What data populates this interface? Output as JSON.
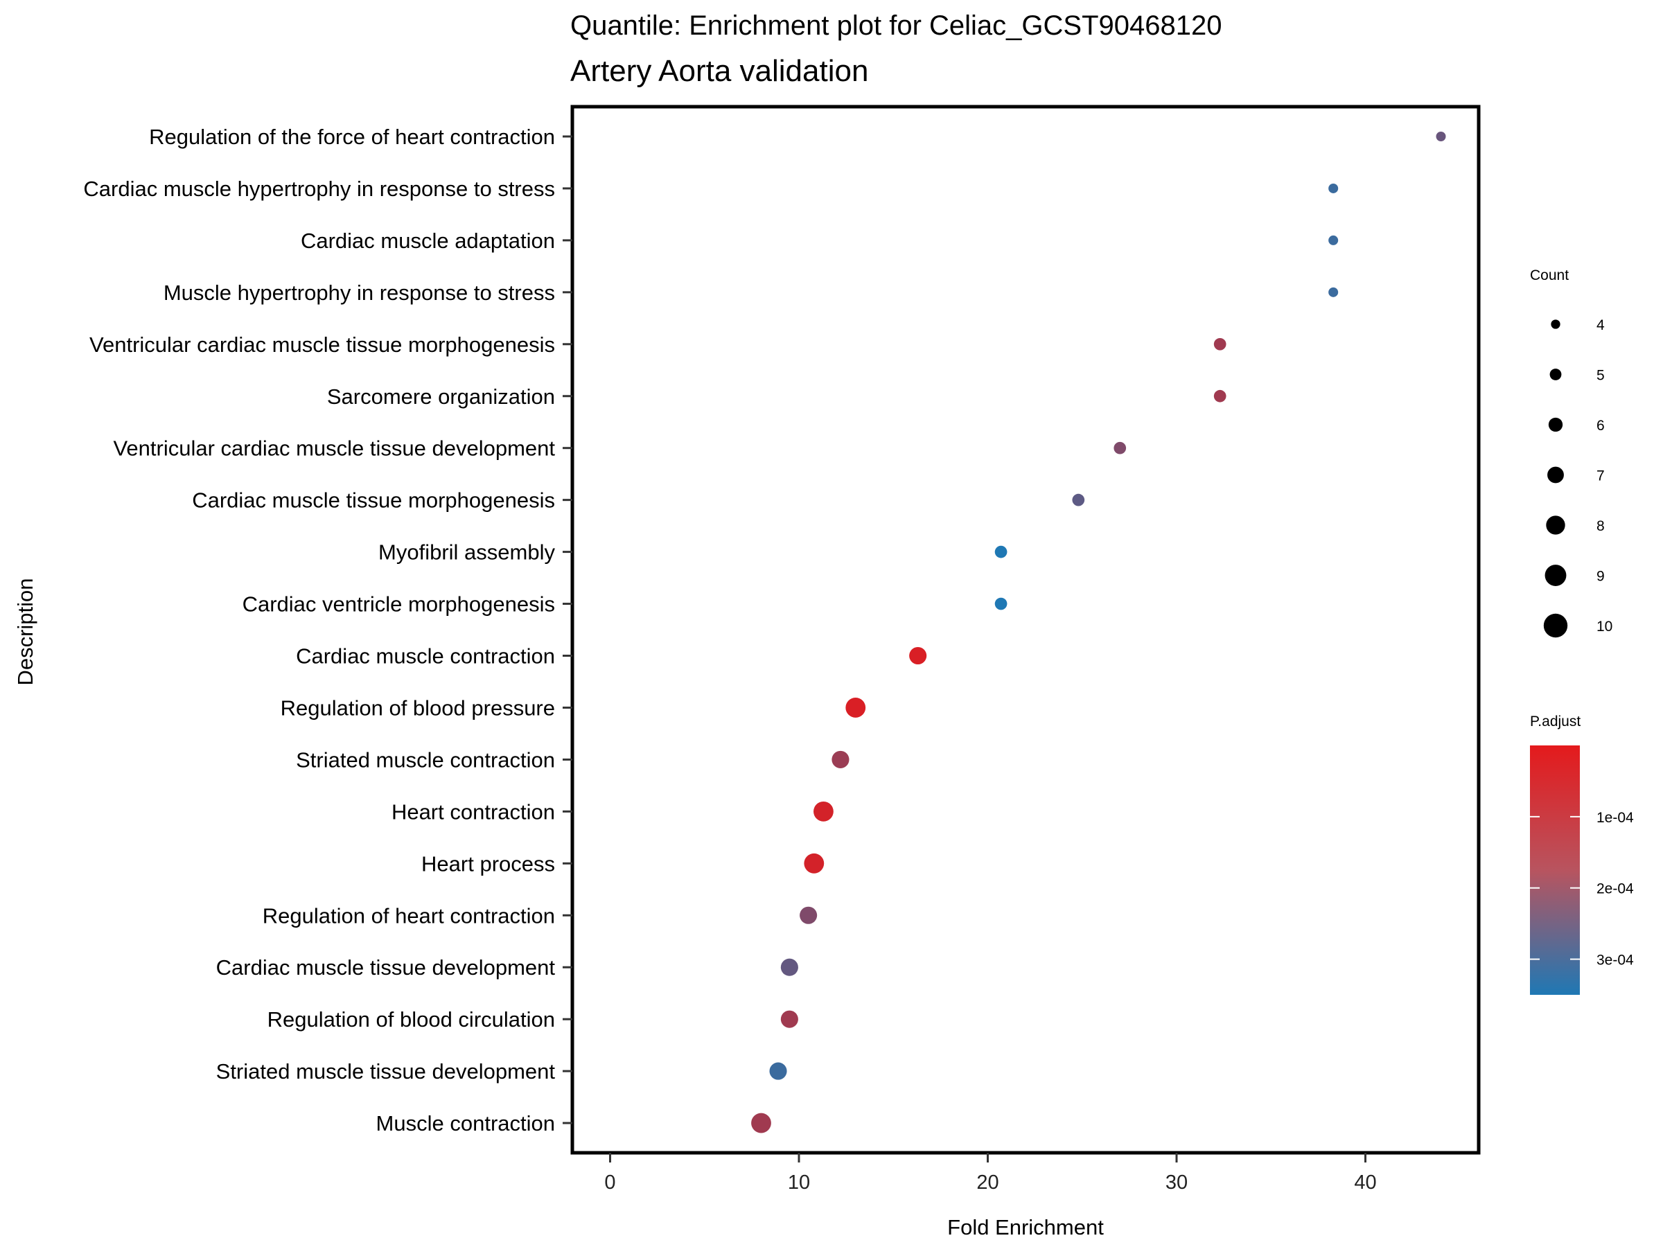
{
  "chart_data": {
    "type": "scatter",
    "title": "Quantile: Enrichment plot for Celiac_GCST90468120",
    "subtitle": "Artery Aorta validation",
    "xlabel": "Fold Enrichment",
    "ylabel": "Description",
    "xlim": [
      -2,
      46
    ],
    "xticks": [
      0,
      10,
      20,
      30,
      40
    ],
    "grid": false,
    "categories": [
      "Regulation of the force of heart contraction",
      "Cardiac muscle hypertrophy in response to stress",
      "Cardiac muscle adaptation",
      "Muscle hypertrophy in response to stress",
      "Ventricular cardiac muscle tissue morphogenesis",
      "Sarcomere organization",
      "Ventricular cardiac muscle tissue development",
      "Cardiac muscle tissue morphogenesis",
      "Myofibril assembly",
      "Cardiac ventricle morphogenesis",
      "Cardiac muscle contraction",
      "Regulation of blood pressure",
      "Striated muscle contraction",
      "Heart contraction",
      "Heart process",
      "Regulation of heart contraction",
      "Cardiac muscle tissue development",
      "Regulation of blood circulation",
      "Striated muscle tissue development",
      "Muscle contraction"
    ],
    "points": [
      {
        "description": "Regulation of the force of heart contraction",
        "fold_enrichment": 44.0,
        "count": 4,
        "p_adjust": 0.00022
      },
      {
        "description": "Cardiac muscle hypertrophy in response to stress",
        "fold_enrichment": 38.3,
        "count": 4,
        "p_adjust": 0.0003
      },
      {
        "description": "Cardiac muscle adaptation",
        "fold_enrichment": 38.3,
        "count": 4,
        "p_adjust": 0.0003
      },
      {
        "description": "Muscle hypertrophy in response to stress",
        "fold_enrichment": 38.3,
        "count": 4,
        "p_adjust": 0.0003
      },
      {
        "description": "Ventricular cardiac muscle tissue morphogenesis",
        "fold_enrichment": 32.3,
        "count": 5,
        "p_adjust": 0.00012
      },
      {
        "description": "Sarcomere organization",
        "fold_enrichment": 32.3,
        "count": 5,
        "p_adjust": 0.00012
      },
      {
        "description": "Ventricular cardiac muscle tissue development",
        "fold_enrichment": 27.0,
        "count": 5,
        "p_adjust": 0.00018
      },
      {
        "description": "Cardiac muscle tissue morphogenesis",
        "fold_enrichment": 24.8,
        "count": 5,
        "p_adjust": 0.00024
      },
      {
        "description": "Myofibril assembly",
        "fold_enrichment": 20.7,
        "count": 5,
        "p_adjust": 0.00035
      },
      {
        "description": "Cardiac ventricle morphogenesis",
        "fold_enrichment": 20.7,
        "count": 5,
        "p_adjust": 0.00035
      },
      {
        "description": "Cardiac muscle contraction",
        "fold_enrichment": 16.3,
        "count": 7,
        "p_adjust": 2e-05
      },
      {
        "description": "Regulation of blood pressure",
        "fold_enrichment": 13.0,
        "count": 8,
        "p_adjust": 2e-05
      },
      {
        "description": "Striated muscle contraction",
        "fold_enrichment": 12.2,
        "count": 7,
        "p_adjust": 0.00013
      },
      {
        "description": "Heart contraction",
        "fold_enrichment": 11.3,
        "count": 8,
        "p_adjust": 3e-05
      },
      {
        "description": "Heart process",
        "fold_enrichment": 10.8,
        "count": 8,
        "p_adjust": 3e-05
      },
      {
        "description": "Regulation of heart contraction",
        "fold_enrichment": 10.5,
        "count": 7,
        "p_adjust": 0.00018
      },
      {
        "description": "Cardiac muscle tissue development",
        "fold_enrichment": 9.5,
        "count": 7,
        "p_adjust": 0.00023
      },
      {
        "description": "Regulation of blood circulation",
        "fold_enrichment": 9.5,
        "count": 7,
        "p_adjust": 0.00012
      },
      {
        "description": "Striated muscle tissue development",
        "fold_enrichment": 8.9,
        "count": 7,
        "p_adjust": 0.0003
      },
      {
        "description": "Muscle contraction",
        "fold_enrichment": 8.0,
        "count": 8,
        "p_adjust": 0.00012
      }
    ],
    "size_legend": {
      "title": "Count",
      "values": [
        4,
        5,
        6,
        7,
        8,
        9,
        10
      ]
    },
    "color_legend": {
      "title": "P.adjust",
      "range": [
        0.0,
        0.00035
      ],
      "ticks": [
        {
          "value": 0.0001,
          "label": "1e-04"
        },
        {
          "value": 0.0002,
          "label": "2e-04"
        },
        {
          "value": 0.0003,
          "label": "3e-04"
        }
      ],
      "color_low": "#e41a1c",
      "color_high": "#1f78b4"
    }
  }
}
